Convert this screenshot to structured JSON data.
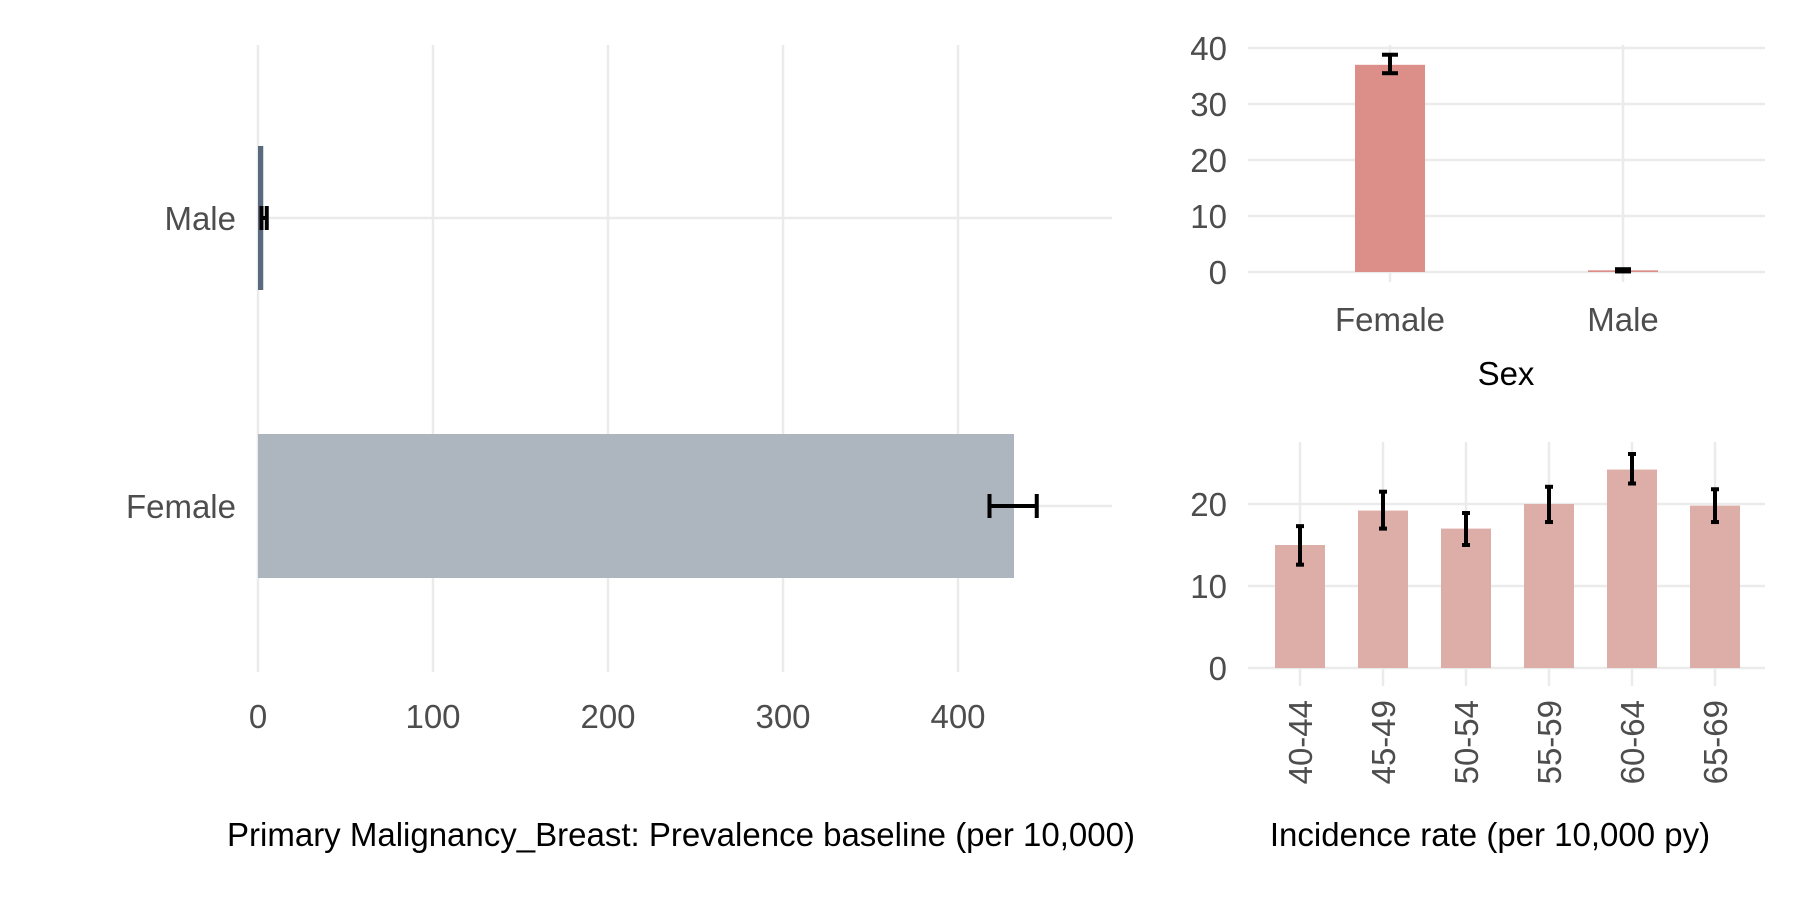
{
  "chart_data": [
    {
      "id": "prevalence",
      "type": "bar",
      "orientation": "horizontal",
      "categories": [
        "Male",
        "Female"
      ],
      "values": [
        3,
        432
      ],
      "error_low": [
        2,
        418
      ],
      "error_high": [
        5,
        445
      ],
      "bar_colors": [
        "#5a6a7e",
        "#adb5be"
      ],
      "xlabel": "Primary Malignancy_Breast: Prevalence baseline (per 10,000)",
      "ylabel": "",
      "xlim": [
        0,
        465
      ],
      "xticks": [
        0,
        100,
        200,
        300,
        400
      ],
      "grid": true
    },
    {
      "id": "incidence_sex",
      "type": "bar",
      "categories": [
        "Female",
        "Male"
      ],
      "values": [
        37,
        0.3
      ],
      "error_low": [
        35.5,
        0.1
      ],
      "error_high": [
        38.8,
        0.5
      ],
      "bar_color": "#dc8f88",
      "xlabel": "Sex",
      "ylabel": "",
      "ylim": [
        0,
        40
      ],
      "yticks": [
        0,
        10,
        20,
        30,
        40
      ],
      "grid": true
    },
    {
      "id": "incidence_age",
      "type": "bar",
      "categories": [
        "40-44",
        "45-49",
        "50-54",
        "55-59",
        "60-64",
        "65-69"
      ],
      "values": [
        15,
        19.2,
        17,
        20,
        24.2,
        19.8
      ],
      "error_low": [
        12.6,
        17,
        15,
        17.8,
        22.5,
        17.8
      ],
      "error_high": [
        17.3,
        21.5,
        18.9,
        22.1,
        26.1,
        21.8
      ],
      "bar_color": "#dcaea7",
      "xlabel": "Incidence rate (per 10,000 py)",
      "ylabel": "",
      "ylim": [
        0,
        27.5
      ],
      "yticks": [
        0,
        10,
        20
      ],
      "grid": true
    }
  ]
}
